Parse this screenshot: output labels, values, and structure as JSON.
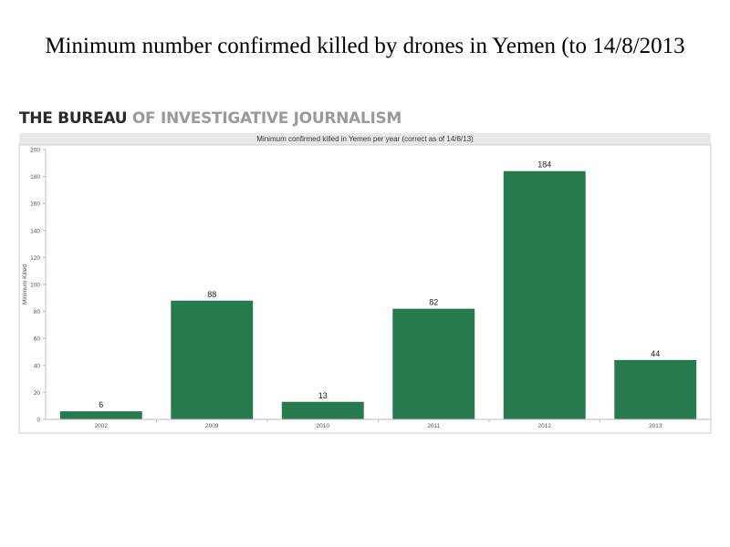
{
  "title": "Minimum number confirmed killed by drones in Yemen (to 14/8/2013",
  "brand": {
    "strong": "THE BUREAU",
    "light": "OF INVESTIGATIVE JOURNALISM"
  },
  "colors": {
    "bar": "#267a4d",
    "header_bg": "#e8e8e8"
  },
  "chart_data": {
    "type": "bar",
    "title": "Minimum confirmed killed in Yemen per year (correct as of 14/8/13)",
    "xlabel": "",
    "ylabel": "Minimum Killed",
    "categories": [
      "2002",
      "2009",
      "2010",
      "2011",
      "2012",
      "2013"
    ],
    "values": [
      6,
      88,
      13,
      82,
      184,
      44
    ],
    "ylim": [
      0,
      200
    ],
    "yticks": [
      0,
      20,
      40,
      60,
      80,
      100,
      120,
      140,
      160,
      180,
      200
    ],
    "grid": false,
    "data_labels": true
  }
}
